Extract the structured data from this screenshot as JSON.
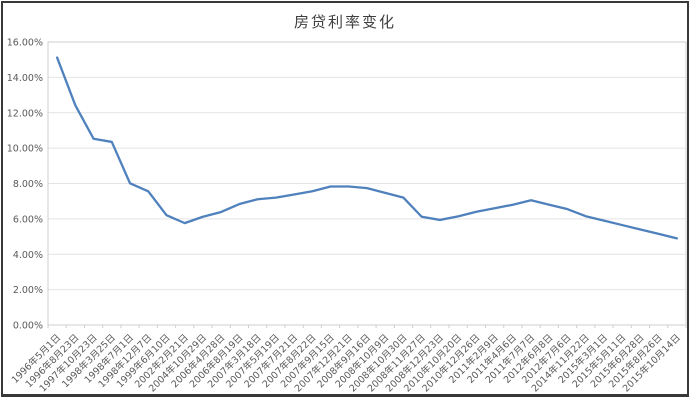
{
  "chart_data": {
    "type": "line",
    "title": "房贷利率变化",
    "categories": [
      "1996年5月1日",
      "1996年8月23日",
      "1997年10月23日",
      "1998年3月25日",
      "1998年7月1日",
      "1998年12月7日",
      "1999年6月10日",
      "2002年2月21日",
      "2004年10月29日",
      "2006年4月28日",
      "2006年8月19日",
      "2007年3月18日",
      "2007年5月19日",
      "2007年7月21日",
      "2007年8月22日",
      "2007年9月15日",
      "2007年12月21日",
      "2008年9月16日",
      "2008年10月9日",
      "2008年10月30日",
      "2008年11月27日",
      "2008年12月23日",
      "2010年10月20日",
      "2010年12月26日",
      "2011年2月9日",
      "2011年4月6日",
      "2011年7月7日",
      "2012年6月8日",
      "2012年7月6日",
      "2014年11月22日",
      "2015年3月1日",
      "2015年5月11日",
      "2015年6月28日",
      "2015年8月26日",
      "2015年10月14日"
    ],
    "values": [
      15.12,
      12.42,
      10.53,
      10.35,
      8.01,
      7.56,
      6.21,
      5.76,
      6.12,
      6.39,
      6.84,
      7.11,
      7.2,
      7.38,
      7.56,
      7.83,
      7.83,
      7.74,
      7.47,
      7.2,
      6.12,
      5.94,
      6.14,
      6.4,
      6.6,
      6.8,
      7.05,
      6.8,
      6.55,
      6.15,
      5.9,
      5.65,
      5.4,
      5.15,
      4.9
    ],
    "xlabel": "",
    "ylabel": "",
    "ylim": [
      0,
      16
    ],
    "ytick_step": 2,
    "ytick_labels": [
      "0.00%",
      "2.00%",
      "4.00%",
      "6.00%",
      "8.00%",
      "10.00%",
      "12.00%",
      "14.00%",
      "16.00%"
    ],
    "grid": true,
    "legend": "none",
    "x_label_rotation": 45
  },
  "colors": {
    "line": "#4f81bd",
    "gridline": "#e4e4e4",
    "plot_border": "#cfcfcf",
    "axis_text": "#595959",
    "title_text": "#3f3f3f",
    "frame_border": "#383838",
    "background": "#ffffff"
  }
}
